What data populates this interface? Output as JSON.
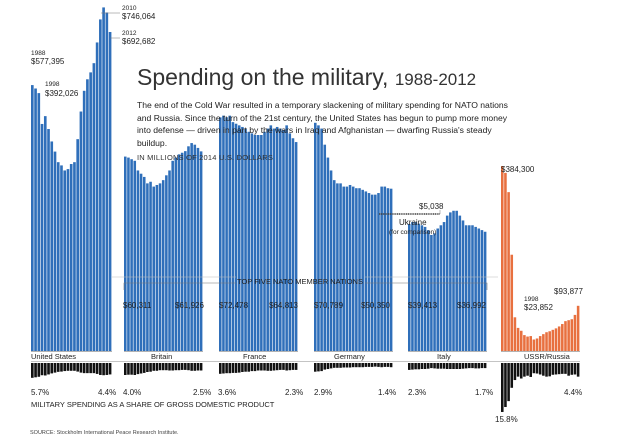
{
  "title": "Spending on the military,",
  "title_years": "1988-2012",
  "description": "The end of the Cold War resulted in a temporary slackening of military spending for NATO nations and Russia. Since the turn of the 21st century, the United States has begun to pump more money into defense — driven in part by the wars in Iraq and Afghanistan — dwarfing Russia's steady buildup.",
  "unit_note": "IN MILLIONS OF 2014 U.S. DOLLARS",
  "nato_label": "TOP FIVE NATO MEMBER NATIONS",
  "gdp_caption": "MILITARY SPENDING AS A SHARE OF GROSS DOMESTIC PRODUCT",
  "source": "SOURCE: Stockholm International Peace Research Institute.",
  "colors": {
    "nato": "#2f6fba",
    "russia": "#e8703f",
    "gdp": "#111111"
  },
  "labels": {
    "us_1988_year": "1988",
    "us_1988_val": "$577,395",
    "us_1998_year": "1998",
    "us_1998_val": "$392,026",
    "us_2010_year": "2010",
    "us_2010_val": "$746,064",
    "us_2012_year": "2012",
    "us_2012_val": "$692,682",
    "uk_first": "$60,311",
    "uk_last": "$61,926",
    "fr_first": "$72,478",
    "fr_last": "$64,813",
    "de_first": "$70,789",
    "de_last": "$50,350",
    "it_first": "$39,413",
    "it_last": "$36,992",
    "ru_first": "$384,300",
    "ru_1998_year": "1998",
    "ru_1998_val": "$23,852",
    "ru_last": "$93,877",
    "ukraine_val": "$5,038",
    "ukraine_name": "Ukraine",
    "ukraine_note": "(for comparison)",
    "gdp_us_first": "5.7%",
    "gdp_us_last": "4.4%",
    "gdp_uk_first": "4.0%",
    "gdp_uk_last": "2.5%",
    "gdp_fr_first": "3.6%",
    "gdp_fr_last": "2.3%",
    "gdp_de_first": "2.9%",
    "gdp_de_last": "1.4%",
    "gdp_it_first": "2.3%",
    "gdp_it_last": "1.7%",
    "gdp_ru_first": "15.8%",
    "gdp_ru_last": "4.4%"
  },
  "chart_data": {
    "type": "bar",
    "title": "Spending on the military, 1988-2012",
    "units": "millions of 2014 U.S. dollars",
    "x": [
      1988,
      1989,
      1990,
      1991,
      1992,
      1993,
      1994,
      1995,
      1996,
      1997,
      1998,
      1999,
      2000,
      2001,
      2002,
      2003,
      2004,
      2005,
      2006,
      2007,
      2008,
      2009,
      2010,
      2011,
      2012
    ],
    "series": [
      {
        "name": "United States",
        "values": [
          577395,
          570000,
          560000,
          493000,
          510000,
          482000,
          455000,
          433000,
          410000,
          403000,
          392026,
          395000,
          406000,
          410000,
          460000,
          520000,
          565000,
          590000,
          605000,
          625000,
          670000,
          720000,
          746064,
          735000,
          692682
        ]
      },
      {
        "name": "Britain",
        "values": [
          60311,
          60000,
          59500,
          59000,
          56000,
          55000,
          54000,
          52000,
          52500,
          51000,
          51500,
          52000,
          53000,
          54500,
          56000,
          59000,
          60000,
          61000,
          61500,
          62000,
          63500,
          64500,
          64000,
          63000,
          61926
        ]
      },
      {
        "name": "France",
        "values": [
          72478,
          73000,
          72500,
          73000,
          71000,
          70500,
          70000,
          69500,
          69000,
          68000,
          67500,
          67000,
          67000,
          67000,
          68000,
          69000,
          70000,
          69000,
          69500,
          69000,
          68500,
          70000,
          67500,
          66000,
          64813
        ]
      },
      {
        "name": "Germany",
        "values": [
          70789,
          70000,
          69000,
          64000,
          60000,
          56000,
          53000,
          52000,
          52000,
          51000,
          51000,
          51500,
          51000,
          50500,
          50500,
          50000,
          49500,
          49000,
          48500,
          48500,
          49000,
          51000,
          51000,
          50500,
          50350
        ]
      },
      {
        "name": "Italy",
        "values": [
          39413,
          40000,
          40000,
          39500,
          39000,
          38500,
          37500,
          36000,
          36500,
          38000,
          39000,
          40000,
          42000,
          43000,
          43500,
          43500,
          42000,
          40500,
          39000,
          39000,
          39000,
          38500,
          38000,
          37500,
          36992
        ]
      },
      {
        "name": "USSR/Russia",
        "values": [
          384300,
          370000,
          330000,
          200000,
          70000,
          48000,
          42000,
          33000,
          30000,
          31000,
          23852,
          26000,
          31000,
          35000,
          39000,
          41000,
          44000,
          47000,
          51000,
          56000,
          62000,
          64000,
          66000,
          75000,
          93877
        ]
      }
    ],
    "gdp_share_pct": [
      {
        "name": "United States",
        "values": [
          5.7,
          5.5,
          5.3,
          4.7,
          4.8,
          4.4,
          4.0,
          3.7,
          3.4,
          3.3,
          3.1,
          3.0,
          3.0,
          3.0,
          3.3,
          3.7,
          3.9,
          3.9,
          3.9,
          3.9,
          4.2,
          4.6,
          4.7,
          4.6,
          4.4
        ]
      },
      {
        "name": "Britain",
        "values": [
          4.0,
          3.9,
          3.9,
          4.0,
          3.7,
          3.5,
          3.3,
          3.0,
          2.9,
          2.6,
          2.6,
          2.4,
          2.4,
          2.4,
          2.5,
          2.5,
          2.4,
          2.4,
          2.3,
          2.3,
          2.4,
          2.6,
          2.6,
          2.5,
          2.5
        ]
      },
      {
        "name": "France",
        "values": [
          3.6,
          3.5,
          3.4,
          3.4,
          3.3,
          3.3,
          3.2,
          3.0,
          2.9,
          2.9,
          2.7,
          2.7,
          2.5,
          2.5,
          2.5,
          2.6,
          2.6,
          2.5,
          2.4,
          2.3,
          2.3,
          2.5,
          2.4,
          2.3,
          2.3
        ]
      },
      {
        "name": "Germany",
        "values": [
          2.9,
          2.8,
          2.7,
          2.2,
          2.0,
          1.8,
          1.6,
          1.6,
          1.6,
          1.5,
          1.5,
          1.5,
          1.4,
          1.4,
          1.4,
          1.4,
          1.3,
          1.3,
          1.3,
          1.2,
          1.3,
          1.4,
          1.3,
          1.3,
          1.4
        ]
      },
      {
        "name": "Italy",
        "values": [
          2.3,
          2.2,
          2.1,
          2.1,
          2.0,
          2.0,
          1.9,
          1.7,
          1.8,
          1.9,
          1.9,
          1.9,
          2.0,
          2.0,
          2.0,
          2.0,
          2.0,
          1.9,
          1.8,
          1.7,
          1.7,
          1.8,
          1.8,
          1.7,
          1.7
        ]
      },
      {
        "name": "USSR/Russia",
        "values": [
          15.8,
          14.2,
          12.3,
          8.0,
          5.5,
          4.4,
          5.0,
          4.4,
          4.1,
          4.5,
          3.3,
          3.4,
          3.7,
          4.1,
          4.4,
          4.3,
          3.8,
          3.7,
          3.6,
          3.5,
          3.5,
          4.1,
          3.8,
          3.7,
          4.4
        ]
      }
    ],
    "comparison": {
      "name": "Ukraine",
      "values": [
        5038
      ]
    },
    "annotations": [
      "TOP FIVE NATO MEMBER NATIONS",
      "MILITARY SPENDING AS A SHARE OF GROSS DOMESTIC PRODUCT"
    ]
  }
}
